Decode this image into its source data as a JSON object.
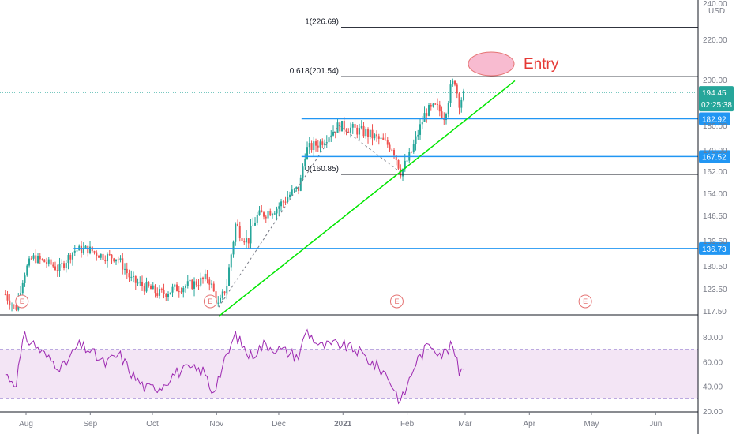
{
  "currency": "USD",
  "annotation": "Entry",
  "chart_data": [
    {
      "type": "candlestick",
      "title": "",
      "ylim": [
        116,
        244
      ],
      "y_ticks": [
        240.0,
        220.0,
        200.0,
        180.0,
        170.0,
        162.0,
        154.0,
        146.5,
        139.5,
        130.5,
        123.5,
        117.5
      ],
      "x_ticks": [
        "Aug",
        "Sep",
        "Oct",
        "Nov",
        "Dec",
        "2021",
        "Feb",
        "Mar",
        "Apr",
        "May",
        "Jun"
      ],
      "price_path": [
        [
          "2020-07-22",
          122
        ],
        [
          "2020-07-27",
          118
        ],
        [
          "2020-07-31",
          128
        ],
        [
          "2020-08-04",
          133.5
        ],
        [
          "2020-08-10",
          132
        ],
        [
          "2020-08-17",
          129.5
        ],
        [
          "2020-08-24",
          136
        ],
        [
          "2020-08-31",
          136.5
        ],
        [
          "2020-09-07",
          134
        ],
        [
          "2020-09-14",
          133.5
        ],
        [
          "2020-09-21",
          126
        ],
        [
          "2020-09-28",
          124
        ],
        [
          "2020-10-05",
          122
        ],
        [
          "2020-10-14",
          124
        ],
        [
          "2020-10-21",
          125
        ],
        [
          "2020-10-28",
          127
        ],
        [
          "2020-11-02",
          118.5
        ],
        [
          "2020-11-06",
          125
        ],
        [
          "2020-11-10",
          144
        ],
        [
          "2020-11-16",
          139
        ],
        [
          "2020-11-20",
          146
        ],
        [
          "2020-11-30",
          149
        ],
        [
          "2020-12-07",
          154
        ],
        [
          "2020-12-11",
          156
        ],
        [
          "2020-12-14",
          170
        ],
        [
          "2020-12-21",
          173
        ],
        [
          "2020-12-30",
          180
        ],
        [
          "2021-01-04",
          179
        ],
        [
          "2021-01-12",
          177
        ],
        [
          "2021-01-19",
          174
        ],
        [
          "2021-01-25",
          171
        ],
        [
          "2021-01-29",
          161.5
        ],
        [
          "2021-02-03",
          169
        ],
        [
          "2021-02-10",
          186
        ],
        [
          "2021-02-15",
          188
        ],
        [
          "2021-02-19",
          184
        ],
        [
          "2021-02-22",
          196
        ],
        [
          "2021-02-24",
          200
        ],
        [
          "2021-02-26",
          190
        ],
        [
          "2021-03-01",
          194.45
        ]
      ],
      "current_price": "194.45",
      "countdown": "02:25:38",
      "price_lines": [
        {
          "value": "182.92",
          "from": "2020-12-12",
          "color": "#2196f3"
        },
        {
          "value": "167.52",
          "from": "2020-12-12",
          "color": "#2196f3"
        },
        {
          "value": "136.73",
          "from": "2020-08-24",
          "color": "#2196f3"
        }
      ],
      "fib_levels": [
        {
          "label": "1(226.69)",
          "value": 226.69
        },
        {
          "label": "0.618(201.54)",
          "value": 201.54
        },
        {
          "label": "0(160.85)",
          "value": 160.85
        }
      ],
      "trendline": {
        "from": [
          "2020-11-02",
          116
        ],
        "to": [
          "2021-03-25",
          199.5
        ],
        "color": "#00e600"
      },
      "earnings_markers": [
        {
          "date": "2020-07-30",
          "label": "E"
        },
        {
          "date": "2020-10-29",
          "label": "E"
        },
        {
          "date": "2021-01-27",
          "label": "E"
        },
        {
          "date": "2021-04-28",
          "label": "E"
        }
      ]
    },
    {
      "type": "line",
      "name": "",
      "ylim": [
        20,
        94
      ],
      "y_ticks": [
        80.0,
        60.0,
        40.0,
        20.0
      ],
      "band": [
        30,
        70
      ],
      "color": "#9c27b0",
      "values_path": [
        [
          "2020-07-22",
          50
        ],
        [
          "2020-07-27",
          42
        ],
        [
          "2020-07-31",
          80
        ],
        [
          "2020-08-05",
          74
        ],
        [
          "2020-08-12",
          62
        ],
        [
          "2020-08-19",
          55
        ],
        [
          "2020-08-26",
          73
        ],
        [
          "2020-08-31",
          70
        ],
        [
          "2020-09-08",
          58
        ],
        [
          "2020-09-15",
          66
        ],
        [
          "2020-09-22",
          48
        ],
        [
          "2020-09-28",
          38
        ],
        [
          "2020-10-05",
          40
        ],
        [
          "2020-10-12",
          51
        ],
        [
          "2020-10-19",
          54
        ],
        [
          "2020-10-26",
          52
        ],
        [
          "2020-10-30",
          35
        ],
        [
          "2020-11-06",
          64
        ],
        [
          "2020-11-10",
          82
        ],
        [
          "2020-11-17",
          64
        ],
        [
          "2020-11-24",
          74
        ],
        [
          "2020-12-01",
          70
        ],
        [
          "2020-12-08",
          66
        ],
        [
          "2020-12-11",
          64
        ],
        [
          "2020-12-14",
          86
        ],
        [
          "2020-12-21",
          72
        ],
        [
          "2020-12-30",
          74
        ],
        [
          "2021-01-08",
          69
        ],
        [
          "2021-01-15",
          59
        ],
        [
          "2021-01-22",
          50
        ],
        [
          "2021-01-29",
          27
        ],
        [
          "2021-02-05",
          59
        ],
        [
          "2021-02-12",
          75
        ],
        [
          "2021-02-18",
          66
        ],
        [
          "2021-02-23",
          73
        ],
        [
          "2021-02-26",
          52
        ],
        [
          "2021-03-01",
          59
        ]
      ]
    }
  ]
}
